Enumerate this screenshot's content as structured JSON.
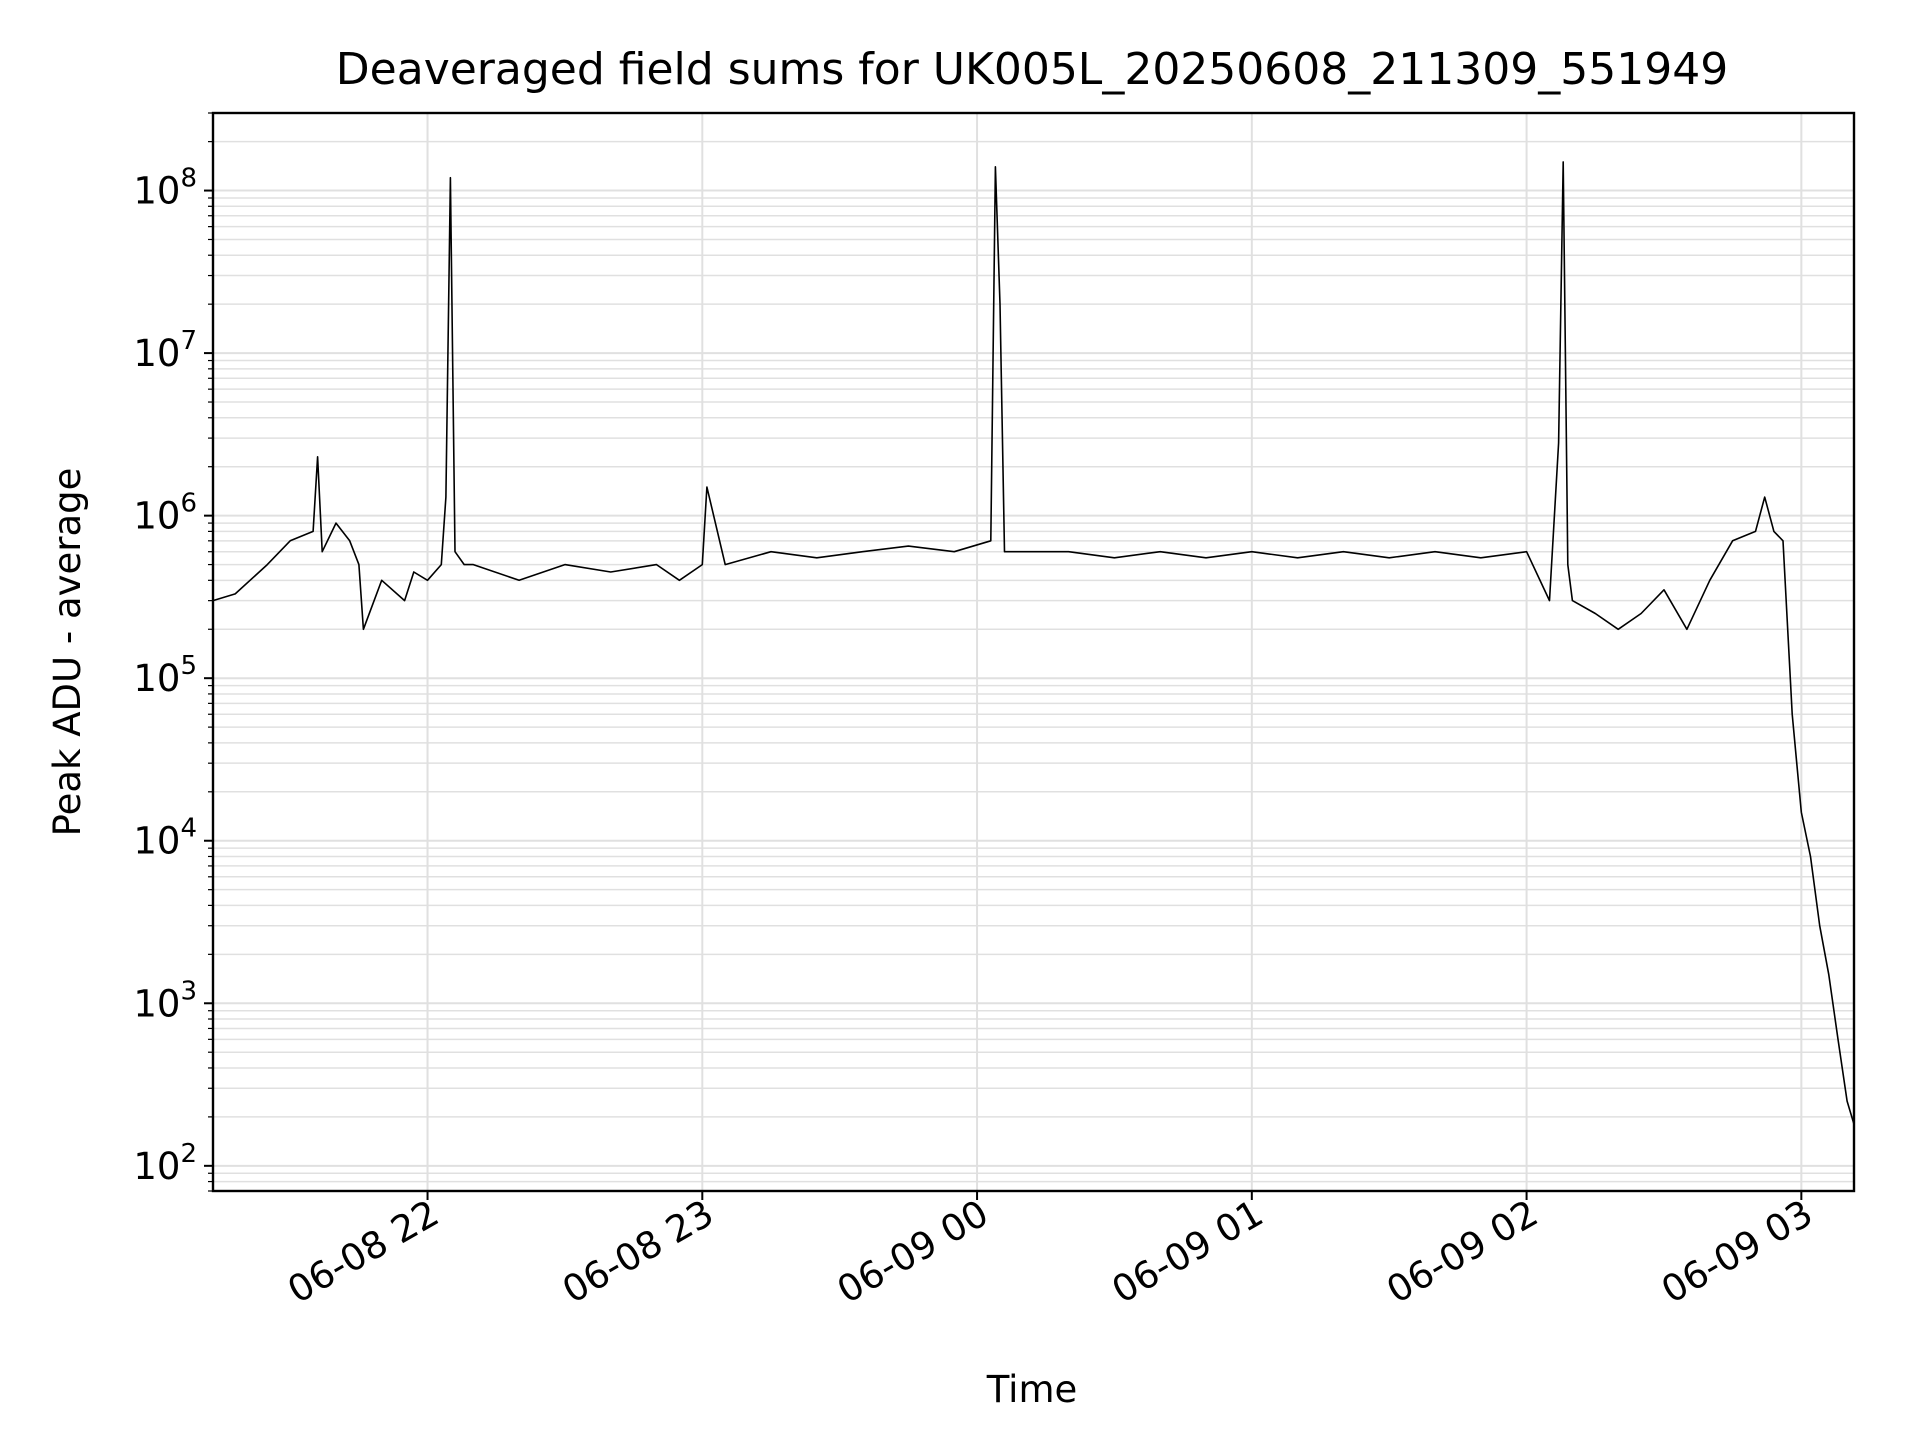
{
  "chart_data": {
    "type": "line",
    "title": "Deaveraged field sums for UK005L_20250608_211309_551949",
    "xlabel": "Time",
    "ylabel": "Peak ADU - average",
    "yscale": "log",
    "ylim": [
      70,
      300000000
    ],
    "xlim": [
      "2025-06-08 21:13:09",
      "2025-06-09 03:11:30"
    ],
    "grid": true,
    "line_color": "#000000",
    "grid_color": "#e0e0e0",
    "x_ticks": [
      {
        "t": "2025-06-08 22:00",
        "label": "06-08 22"
      },
      {
        "t": "2025-06-08 23:00",
        "label": "06-08 23"
      },
      {
        "t": "2025-06-09 00:00",
        "label": "06-09 00"
      },
      {
        "t": "2025-06-09 01:00",
        "label": "06-09 01"
      },
      {
        "t": "2025-06-09 02:00",
        "label": "06-09 02"
      },
      {
        "t": "2025-06-09 03:00",
        "label": "06-09 03"
      }
    ],
    "y_ticks": [
      {
        "v": 100,
        "base": "10",
        "exp": "2"
      },
      {
        "v": 1000,
        "base": "10",
        "exp": "3"
      },
      {
        "v": 10000,
        "base": "10",
        "exp": "4"
      },
      {
        "v": 100000,
        "base": "10",
        "exp": "5"
      },
      {
        "v": 1000000,
        "base": "10",
        "exp": "6"
      },
      {
        "v": 10000000,
        "base": "10",
        "exp": "7"
      },
      {
        "v": 100000000,
        "base": "10",
        "exp": "8"
      }
    ],
    "series": [
      {
        "x": [
          "2025-06-08 21:13:09",
          "2025-06-08 21:18",
          "2025-06-08 21:25",
          "2025-06-08 21:30",
          "2025-06-08 21:35",
          "2025-06-08 21:36",
          "2025-06-08 21:37",
          "2025-06-08 21:40",
          "2025-06-08 21:43",
          "2025-06-08 21:45",
          "2025-06-08 21:46",
          "2025-06-08 21:50",
          "2025-06-08 21:55",
          "2025-06-08 21:57",
          "2025-06-08 22:00",
          "2025-06-08 22:03",
          "2025-06-08 22:04",
          "2025-06-08 22:05",
          "2025-06-08 22:06",
          "2025-06-08 22:08",
          "2025-06-08 22:10",
          "2025-06-08 22:20",
          "2025-06-08 22:30",
          "2025-06-08 22:40",
          "2025-06-08 22:50",
          "2025-06-08 22:55",
          "2025-06-08 23:00",
          "2025-06-08 23:01",
          "2025-06-08 23:05",
          "2025-06-08 23:15",
          "2025-06-08 23:25",
          "2025-06-08 23:35",
          "2025-06-08 23:45",
          "2025-06-08 23:55",
          "2025-06-09 00:03",
          "2025-06-09 00:04",
          "2025-06-09 00:05",
          "2025-06-09 00:06",
          "2025-06-09 00:08",
          "2025-06-09 00:20",
          "2025-06-09 00:30",
          "2025-06-09 00:40",
          "2025-06-09 00:50",
          "2025-06-09 01:00",
          "2025-06-09 01:10",
          "2025-06-09 01:20",
          "2025-06-09 01:30",
          "2025-06-09 01:40",
          "2025-06-09 01:50",
          "2025-06-09 02:00",
          "2025-06-09 02:05",
          "2025-06-09 02:07",
          "2025-06-09 02:08",
          "2025-06-09 02:09",
          "2025-06-09 02:10",
          "2025-06-09 02:15",
          "2025-06-09 02:20",
          "2025-06-09 02:25",
          "2025-06-09 02:30",
          "2025-06-09 02:35",
          "2025-06-09 02:40",
          "2025-06-09 02:45",
          "2025-06-09 02:50",
          "2025-06-09 02:52",
          "2025-06-09 02:54",
          "2025-06-09 02:56",
          "2025-06-09 02:58",
          "2025-06-09 03:00",
          "2025-06-09 03:02",
          "2025-06-09 03:04",
          "2025-06-09 03:06",
          "2025-06-09 03:08",
          "2025-06-09 03:10",
          "2025-06-09 03:11:30"
        ],
        "y": [
          300000,
          330000,
          500000,
          700000,
          800000,
          2300000,
          600000,
          900000,
          700000,
          500000,
          200000,
          400000,
          300000,
          450000,
          400000,
          500000,
          1300000,
          120000000,
          600000,
          500000,
          500000,
          400000,
          500000,
          450000,
          500000,
          400000,
          500000,
          1500000,
          500000,
          600000,
          550000,
          600000,
          650000,
          600000,
          700000,
          140000000,
          20000000,
          600000,
          600000,
          600000,
          550000,
          600000,
          550000,
          600000,
          550000,
          600000,
          550000,
          600000,
          550000,
          600000,
          300000,
          2800000,
          150000000,
          500000,
          300000,
          250000,
          200000,
          250000,
          350000,
          200000,
          400000,
          700000,
          800000,
          1300000,
          800000,
          700000,
          60000,
          15000,
          8000,
          3000,
          1500,
          600,
          250,
          180
        ]
      }
    ]
  }
}
